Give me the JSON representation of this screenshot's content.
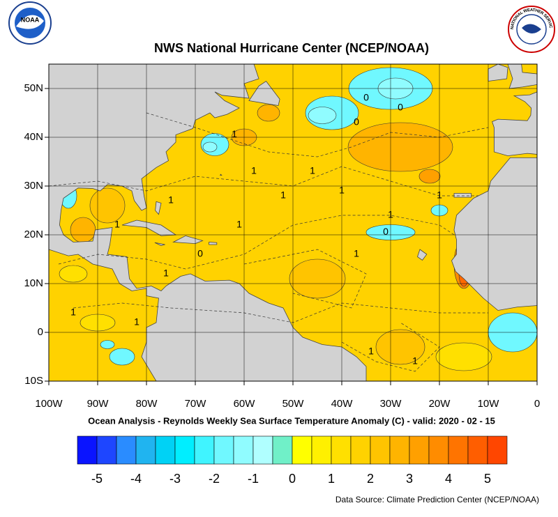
{
  "title": "NWS National Hurricane Center (NCEP/NOAA)",
  "caption": "Ocean Analysis - Reynolds Weekly Sea Surface Temperature Anomaly (C) - valid: 2020 - 02 - 15",
  "source": "Data Source: Climate Prediction Center (NCEP/NOAA)",
  "logos": {
    "left": "NOAA",
    "right": "NATIONAL WEATHER SERVICE"
  },
  "map": {
    "xlim": [
      -100,
      0
    ],
    "ylim": [
      -10,
      55
    ],
    "xticks": [
      {
        "value": -100,
        "label": "100W"
      },
      {
        "value": -90,
        "label": "90W"
      },
      {
        "value": -80,
        "label": "80W"
      },
      {
        "value": -70,
        "label": "70W"
      },
      {
        "value": -60,
        "label": "60W"
      },
      {
        "value": -50,
        "label": "50W"
      },
      {
        "value": -40,
        "label": "40W"
      },
      {
        "value": -30,
        "label": "30W"
      },
      {
        "value": -20,
        "label": "20W"
      },
      {
        "value": -10,
        "label": "10W"
      },
      0
    ],
    "yticks": [
      {
        "value": -10,
        "label": "10S"
      },
      0,
      {
        "value": 10,
        "label": "10N"
      },
      {
        "value": 20,
        "label": "20N"
      },
      {
        "value": 30,
        "label": "30N"
      },
      {
        "value": 40,
        "label": "40N"
      },
      {
        "value": 50,
        "label": "50N"
      }
    ],
    "grid": true,
    "contour_labels": [
      "1",
      "1",
      "1",
      "1",
      "1",
      "1",
      "1",
      "1",
      "1",
      "1",
      "1",
      "1",
      "1",
      "1",
      "1",
      "1",
      "0",
      "0",
      "0",
      "0",
      "0"
    ]
  },
  "colorbar": {
    "colors": [
      "#0a14ff",
      "#1e46ff",
      "#2a8cff",
      "#20b4f0",
      "#00d2f5",
      "#00eeff",
      "#40f4ff",
      "#70f8ff",
      "#90fcff",
      "#b0ffff",
      "#70f0c8",
      "#ffff00",
      "#fff000",
      "#ffe000",
      "#ffd200",
      "#ffc400",
      "#ffb400",
      "#ffa000",
      "#ff8c00",
      "#ff7400",
      "#ff5e00",
      "#ff4600"
    ],
    "labels": [
      -5,
      -4,
      -3,
      -2,
      -1,
      0,
      1,
      2,
      3,
      4,
      5
    ]
  }
}
